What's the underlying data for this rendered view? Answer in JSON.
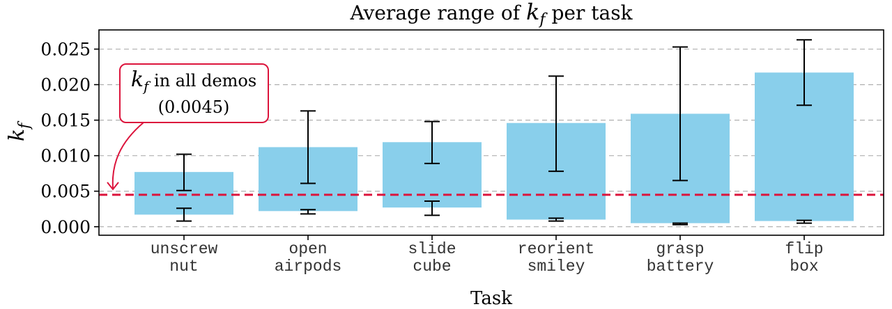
{
  "chart_data": {
    "type": "bar",
    "title_prefix": "Average range of ",
    "title_symbol": "k",
    "title_subscript": "f",
    "title_suffix": " per task",
    "xlabel": "Task",
    "ylabel_symbol": "k",
    "ylabel_subscript": "f",
    "ylim": [
      -0.0012,
      0.0277
    ],
    "yticks": [
      "0.000",
      "0.005",
      "0.010",
      "0.015",
      "0.020",
      "0.025"
    ],
    "ytick_values": [
      0,
      0.005,
      0.01,
      0.015,
      0.02,
      0.025
    ],
    "grid": "horizontal-dashed",
    "categories": [
      [
        "unscrew",
        "nut"
      ],
      [
        "open",
        "airpods"
      ],
      [
        "slide",
        "cube"
      ],
      [
        "reorient",
        "smiley"
      ],
      [
        "grasp",
        "battery"
      ],
      [
        "flip",
        "box"
      ]
    ],
    "bars": [
      {
        "low": 0.0017,
        "high": 0.0077,
        "low_err": [
          0.0008,
          0.0026
        ],
        "high_err": [
          0.0051,
          0.0102
        ]
      },
      {
        "low": 0.0022,
        "high": 0.0112,
        "low_err": [
          0.0018,
          0.0024
        ],
        "high_err": [
          0.0061,
          0.0163
        ]
      },
      {
        "low": 0.0027,
        "high": 0.0119,
        "low_err": [
          0.0016,
          0.0036
        ],
        "high_err": [
          0.0089,
          0.0148
        ]
      },
      {
        "low": 0.001,
        "high": 0.0146,
        "low_err": [
          0.0008,
          0.0012
        ],
        "high_err": [
          0.0078,
          0.0212
        ]
      },
      {
        "low": 0.0005,
        "high": 0.0159,
        "low_err": [
          0.0003,
          0.0005
        ],
        "high_err": [
          0.0065,
          0.0253
        ]
      },
      {
        "low": 0.0008,
        "high": 0.0217,
        "low_err": [
          0.0005,
          0.0009
        ],
        "high_err": [
          0.0171,
          0.0263
        ]
      }
    ],
    "reference_line": {
      "value": 0.0045,
      "color": "#dc143c"
    },
    "annotation": {
      "symbol": "k",
      "subscript": "f",
      "text": " in all demos",
      "value_text": "(0.0045)"
    },
    "colors": {
      "bar": "#89cfeb",
      "error": "#000000",
      "grid": "#b0b0b0",
      "reference": "#dc143c"
    }
  }
}
